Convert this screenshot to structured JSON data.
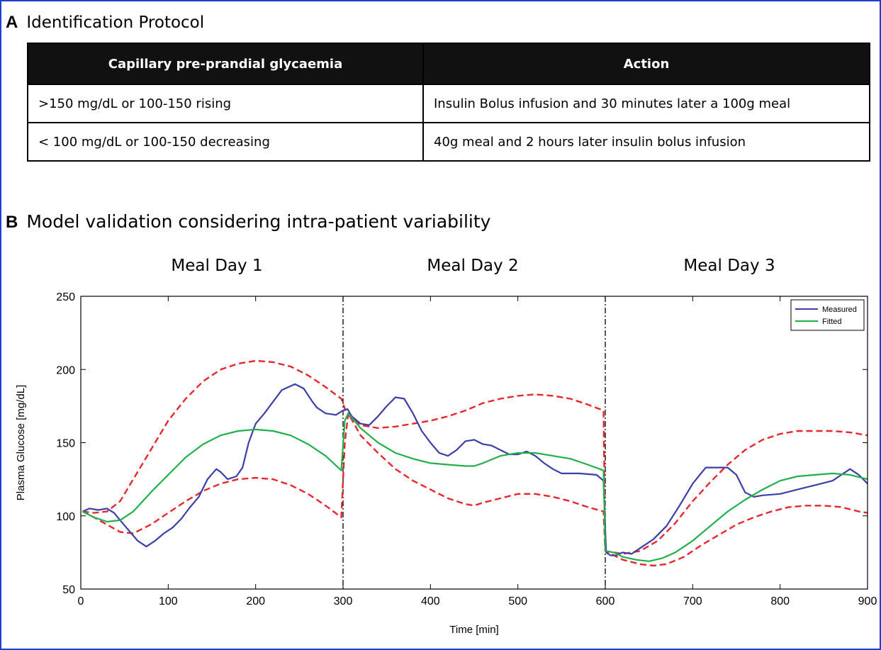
{
  "panel_a": {
    "letter": "A",
    "title": "Identification Protocol",
    "table": {
      "headers": [
        "Capillary pre-prandial glycaemia",
        "Action"
      ],
      "rows": [
        [
          ">150 mg/dL  or  100-150 rising",
          "Insulin Bolus infusion and 30 minutes later a 100g meal"
        ],
        [
          "< 100 mg/dL  or  100-150 decreasing",
          "40g meal and 2 hours later insulin bolus infusion"
        ]
      ]
    }
  },
  "panel_b": {
    "letter": "B",
    "title": "Model validation considering intra-patient variability",
    "day_labels": [
      "Meal Day 1",
      "Meal Day 2",
      "Meal Day 3"
    ]
  },
  "chart_data": {
    "type": "line",
    "title": "",
    "xlabel": "Time [min]",
    "ylabel": "Plasma Glucose [mg/dL]",
    "xlim": [
      0,
      900
    ],
    "ylim": [
      50,
      250
    ],
    "xticks": [
      0,
      100,
      200,
      300,
      400,
      500,
      600,
      700,
      800,
      900
    ],
    "yticks": [
      50,
      100,
      150,
      200,
      250
    ],
    "grid": false,
    "legend_position": "top-right",
    "vertical_lines": [
      300,
      600
    ],
    "series": [
      {
        "name": "Measured",
        "color": "#3b3fa8",
        "style": "solid",
        "points": [
          [
            2,
            103
          ],
          [
            10,
            105
          ],
          [
            20,
            104
          ],
          [
            30,
            105
          ],
          [
            38,
            102
          ],
          [
            45,
            97
          ],
          [
            55,
            90
          ],
          [
            65,
            83
          ],
          [
            75,
            79
          ],
          [
            85,
            83
          ],
          [
            95,
            88
          ],
          [
            105,
            92
          ],
          [
            115,
            98
          ],
          [
            125,
            106
          ],
          [
            135,
            113
          ],
          [
            145,
            125
          ],
          [
            155,
            132
          ],
          [
            160,
            130
          ],
          [
            168,
            125
          ],
          [
            178,
            127
          ],
          [
            185,
            133
          ],
          [
            192,
            150
          ],
          [
            200,
            163
          ],
          [
            210,
            170
          ],
          [
            220,
            178
          ],
          [
            230,
            186
          ],
          [
            245,
            190
          ],
          [
            255,
            187
          ],
          [
            265,
            178
          ],
          [
            270,
            174
          ],
          [
            280,
            170
          ],
          [
            292,
            169
          ],
          [
            300,
            172
          ],
          [
            305,
            173
          ],
          [
            310,
            168
          ],
          [
            320,
            163
          ],
          [
            330,
            162
          ],
          [
            340,
            168
          ],
          [
            350,
            175
          ],
          [
            360,
            181
          ],
          [
            370,
            180
          ],
          [
            380,
            170
          ],
          [
            390,
            158
          ],
          [
            400,
            150
          ],
          [
            410,
            143
          ],
          [
            420,
            141
          ],
          [
            430,
            145
          ],
          [
            440,
            151
          ],
          [
            450,
            152
          ],
          [
            460,
            149
          ],
          [
            470,
            148
          ],
          [
            480,
            145
          ],
          [
            490,
            142
          ],
          [
            500,
            142
          ],
          [
            510,
            144
          ],
          [
            520,
            141
          ],
          [
            530,
            136
          ],
          [
            540,
            132
          ],
          [
            550,
            129
          ],
          [
            570,
            129
          ],
          [
            590,
            128
          ],
          [
            598,
            124
          ],
          [
            601,
            75
          ],
          [
            606,
            73
          ],
          [
            612,
            73
          ],
          [
            620,
            75
          ],
          [
            630,
            74
          ],
          [
            640,
            78
          ],
          [
            655,
            84
          ],
          [
            670,
            93
          ],
          [
            685,
            107
          ],
          [
            700,
            122
          ],
          [
            715,
            133
          ],
          [
            740,
            133
          ],
          [
            750,
            128
          ],
          [
            760,
            116
          ],
          [
            770,
            113
          ],
          [
            780,
            114
          ],
          [
            800,
            115
          ],
          [
            820,
            118
          ],
          [
            840,
            121
          ],
          [
            860,
            124
          ],
          [
            870,
            128
          ],
          [
            880,
            132
          ],
          [
            890,
            128
          ],
          [
            900,
            122
          ]
        ]
      },
      {
        "name": "Fitted",
        "color": "#22b04a",
        "style": "solid",
        "points": [
          [
            2,
            103
          ],
          [
            15,
            99
          ],
          [
            30,
            96
          ],
          [
            45,
            97
          ],
          [
            60,
            103
          ],
          [
            80,
            116
          ],
          [
            100,
            128
          ],
          [
            120,
            140
          ],
          [
            140,
            149
          ],
          [
            160,
            155
          ],
          [
            180,
            158
          ],
          [
            200,
            159
          ],
          [
            220,
            158
          ],
          [
            240,
            155
          ],
          [
            260,
            149
          ],
          [
            280,
            141
          ],
          [
            298,
            131
          ],
          [
            302,
            165
          ],
          [
            306,
            170
          ],
          [
            320,
            160
          ],
          [
            340,
            150
          ],
          [
            360,
            143
          ],
          [
            380,
            139
          ],
          [
            400,
            136
          ],
          [
            420,
            135
          ],
          [
            440,
            134
          ],
          [
            450,
            134
          ],
          [
            460,
            136
          ],
          [
            480,
            141
          ],
          [
            500,
            143
          ],
          [
            520,
            143
          ],
          [
            540,
            141
          ],
          [
            560,
            139
          ],
          [
            580,
            135
          ],
          [
            598,
            131
          ],
          [
            600,
            76
          ],
          [
            610,
            75
          ],
          [
            620,
            72
          ],
          [
            635,
            70
          ],
          [
            650,
            69
          ],
          [
            665,
            71
          ],
          [
            680,
            75
          ],
          [
            700,
            83
          ],
          [
            720,
            93
          ],
          [
            740,
            103
          ],
          [
            760,
            111
          ],
          [
            780,
            118
          ],
          [
            800,
            124
          ],
          [
            820,
            127
          ],
          [
            840,
            128
          ],
          [
            860,
            129
          ],
          [
            880,
            128
          ],
          [
            900,
            125
          ]
        ]
      },
      {
        "name": "",
        "color": "#e8272d",
        "style": "dashed",
        "points": [
          [
            2,
            103
          ],
          [
            15,
            102
          ],
          [
            30,
            103
          ],
          [
            45,
            110
          ],
          [
            60,
            125
          ],
          [
            80,
            145
          ],
          [
            100,
            165
          ],
          [
            120,
            180
          ],
          [
            140,
            192
          ],
          [
            160,
            200
          ],
          [
            180,
            204
          ],
          [
            200,
            206
          ],
          [
            220,
            205
          ],
          [
            240,
            202
          ],
          [
            260,
            196
          ],
          [
            280,
            188
          ],
          [
            298,
            180
          ],
          [
            304,
            170
          ],
          [
            320,
            162
          ],
          [
            340,
            160
          ],
          [
            360,
            161
          ],
          [
            380,
            163
          ],
          [
            400,
            165
          ],
          [
            420,
            168
          ],
          [
            440,
            172
          ],
          [
            460,
            177
          ],
          [
            480,
            180
          ],
          [
            500,
            182
          ],
          [
            520,
            183
          ],
          [
            540,
            182
          ],
          [
            560,
            180
          ],
          [
            580,
            176
          ],
          [
            598,
            172
          ],
          [
            600,
            76
          ],
          [
            610,
            75
          ],
          [
            620,
            74
          ],
          [
            640,
            76
          ],
          [
            660,
            83
          ],
          [
            680,
            95
          ],
          [
            700,
            110
          ],
          [
            720,
            123
          ],
          [
            740,
            135
          ],
          [
            760,
            145
          ],
          [
            780,
            152
          ],
          [
            800,
            156
          ],
          [
            820,
            158
          ],
          [
            840,
            158
          ],
          [
            860,
            158
          ],
          [
            880,
            157
          ],
          [
            900,
            155
          ]
        ]
      },
      {
        "name": "",
        "color": "#e8272d",
        "style": "dashed",
        "points": [
          [
            2,
            103
          ],
          [
            15,
            99
          ],
          [
            30,
            94
          ],
          [
            45,
            89
          ],
          [
            60,
            88
          ],
          [
            80,
            94
          ],
          [
            100,
            102
          ],
          [
            120,
            110
          ],
          [
            140,
            117
          ],
          [
            160,
            122
          ],
          [
            180,
            125
          ],
          [
            200,
            126
          ],
          [
            220,
            125
          ],
          [
            240,
            121
          ],
          [
            260,
            115
          ],
          [
            280,
            107
          ],
          [
            298,
            99
          ],
          [
            302,
            150
          ],
          [
            306,
            170
          ],
          [
            320,
            155
          ],
          [
            340,
            143
          ],
          [
            360,
            132
          ],
          [
            380,
            124
          ],
          [
            400,
            118
          ],
          [
            420,
            112
          ],
          [
            440,
            108
          ],
          [
            450,
            107
          ],
          [
            460,
            109
          ],
          [
            480,
            112
          ],
          [
            500,
            115
          ],
          [
            520,
            115
          ],
          [
            540,
            113
          ],
          [
            560,
            110
          ],
          [
            580,
            106
          ],
          [
            598,
            103
          ],
          [
            600,
            76
          ],
          [
            610,
            73
          ],
          [
            620,
            70
          ],
          [
            640,
            67
          ],
          [
            655,
            66
          ],
          [
            670,
            67
          ],
          [
            690,
            72
          ],
          [
            710,
            80
          ],
          [
            730,
            87
          ],
          [
            750,
            94
          ],
          [
            770,
            99
          ],
          [
            790,
            103
          ],
          [
            810,
            106
          ],
          [
            830,
            107
          ],
          [
            850,
            107
          ],
          [
            870,
            106
          ],
          [
            890,
            103
          ],
          [
            900,
            102
          ]
        ]
      }
    ]
  }
}
